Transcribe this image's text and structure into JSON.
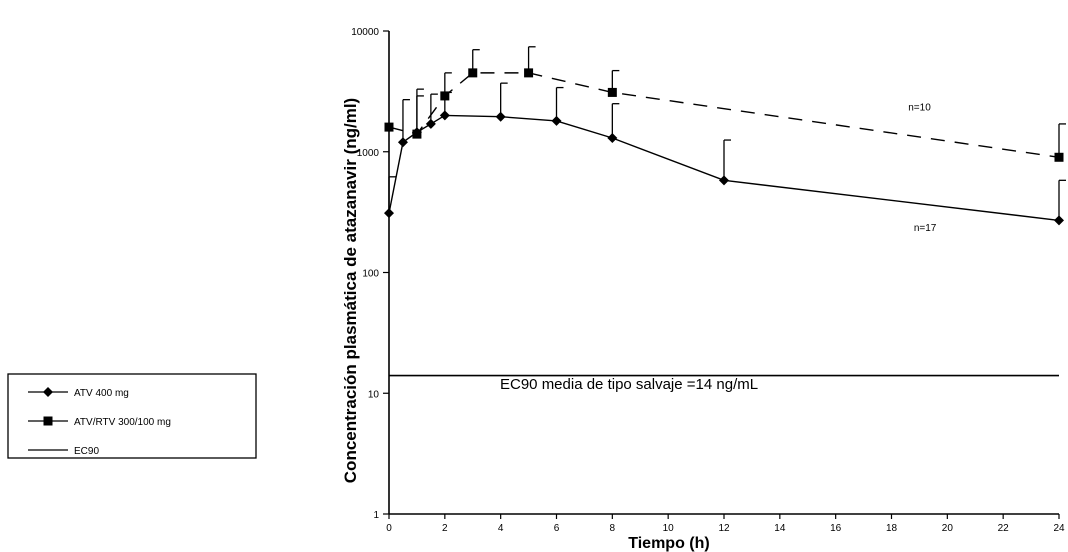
{
  "chart_data": {
    "type": "line",
    "xlabel": "Tiempo (h)",
    "ylabel": "Concentración plasmática de atazanavir (ng/ml)",
    "x_ticks": [
      0,
      2,
      4,
      6,
      8,
      10,
      12,
      14,
      16,
      18,
      20,
      22,
      24
    ],
    "y_ticks": [
      1,
      10,
      100,
      1000,
      10000
    ],
    "y_tick_labels": [
      "1",
      "10",
      "100",
      "1000",
      "10000"
    ],
    "xlim": [
      0,
      24
    ],
    "ylim": [
      1,
      10000
    ],
    "yscale": "log",
    "grid": false,
    "legend_position": "left",
    "series": [
      {
        "name": "ATV 400 mg",
        "marker": "diamond",
        "line_color": "#000000",
        "n_label": "n=17",
        "points": [
          {
            "x": 0,
            "y": 310,
            "err": 620
          },
          {
            "x": 0.5,
            "y": 1200,
            "err": 2700
          },
          {
            "x": 1,
            "y": 1450,
            "err": 2900
          },
          {
            "x": 1.5,
            "y": 1700,
            "err": 3000
          },
          {
            "x": 2,
            "y": 2000,
            "err": 3100
          },
          {
            "x": 4,
            "y": 1950,
            "err": 3700
          },
          {
            "x": 6,
            "y": 1800,
            "err": 3400
          },
          {
            "x": 8,
            "y": 1300,
            "err": 2500
          },
          {
            "x": 12,
            "y": 580,
            "err": 1250
          },
          {
            "x": 24,
            "y": 270,
            "err": 580
          }
        ]
      },
      {
        "name": "ATV/RTV 300/100 mg",
        "marker": "square",
        "line_color": "#000000",
        "n_label": "n=10",
        "points": [
          {
            "x": 0,
            "y": 1600,
            "err": null
          },
          {
            "x": 1,
            "y": 1400,
            "err": 3300
          },
          {
            "x": 2,
            "y": 2900,
            "err": 4500
          },
          {
            "x": 3,
            "y": 4500,
            "err": 7000
          },
          {
            "x": 5,
            "y": 4500,
            "err": 7400
          },
          {
            "x": 8,
            "y": 3100,
            "err": 4700
          },
          {
            "x": 24,
            "y": 900,
            "err": 1700
          }
        ]
      }
    ],
    "reference_line": {
      "name": "EC90",
      "y": 14,
      "annotation": "EC90 media de tipo salvaje =14 ng/mL"
    }
  },
  "legend": {
    "items": [
      {
        "label": "ATV 400 mg",
        "marker": "diamond"
      },
      {
        "label": "ATV/RTV 300/100 mg",
        "marker": "square"
      },
      {
        "label": "EC90",
        "marker": "none"
      }
    ]
  }
}
